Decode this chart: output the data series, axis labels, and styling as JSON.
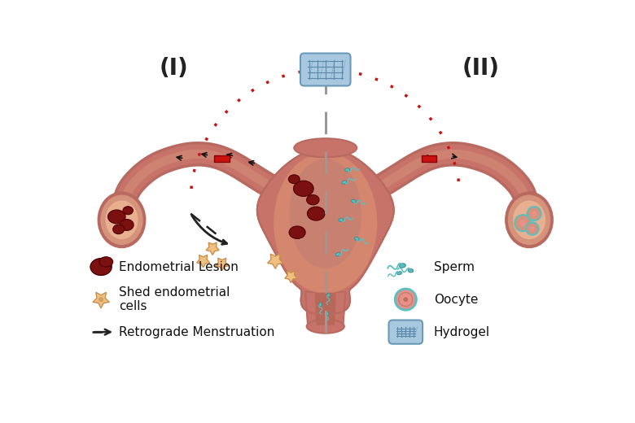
{
  "background_color": "#ffffff",
  "label_I": "(I)",
  "label_II": "(II)",
  "uterus_outer_color": "#C8736A",
  "uterus_mid_color": "#D4876E",
  "uterus_inner_color": "#C97B6A",
  "uterus_cavity_color": "#D4937A",
  "tube_outer_color": "#B86A60",
  "tube_color": "#C8736A",
  "tube_highlight": "#D4937A",
  "ovary_outer_color": "#C8736A",
  "ovary_color": "#D4937A",
  "ovary_inner_color": "#E8B090",
  "lesion_color": "#7A1010",
  "lesion_edge": "#500000",
  "sperm_color": "#5BBFBF",
  "sperm_edge": "#3A9090",
  "hydrogel_fill": "#A8C8E0",
  "hydrogel_edge": "#6A9AB8",
  "hydrogel_line": "#5A8AA8",
  "oocyte_outer_color": "#5BBFBF",
  "oocyte_fill": "#E8908A",
  "oocyte_inner": "#C07060",
  "divider_color": "#999999",
  "red_bar_color": "#CC1111",
  "arc_color": "#CC1111",
  "cell_color": "#F0C080",
  "cell_edge": "#C89050",
  "arrow_color": "#222222",
  "legend_left": [
    "Endometrial Lesion",
    "Shed endometrial\ncells",
    "Retrograde Menstruation"
  ],
  "legend_right": [
    "Sperm",
    "Oocyte",
    "Hydrogel"
  ],
  "font_size_label": 20,
  "font_size_legend": 11
}
